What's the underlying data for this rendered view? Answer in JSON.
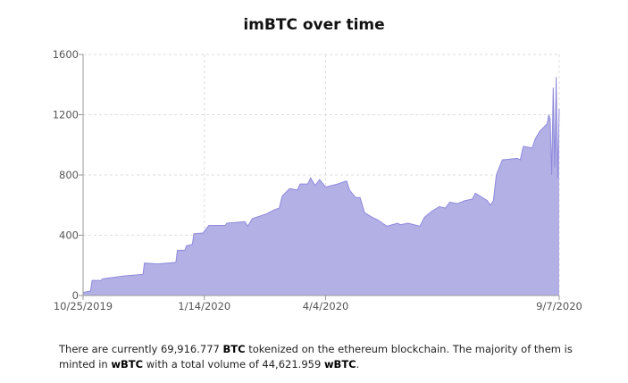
{
  "chart_data": {
    "type": "area",
    "title": "imBTC over time",
    "xlabel": "",
    "ylabel": "",
    "x_range": [
      "2019-10-25",
      "2020-09-07"
    ],
    "ylim": [
      0,
      1600
    ],
    "x_ticks": [
      "10/25/2019",
      "1/14/2020",
      "4/4/2020",
      "9/7/2020"
    ],
    "x_tick_dates": [
      "2019-10-25",
      "2020-01-14",
      "2020-04-04",
      "2020-09-07"
    ],
    "y_ticks": [
      0,
      400,
      800,
      1200,
      1600
    ],
    "grid": true,
    "colors": {
      "fill": "#b3b0e6",
      "line": "#8f8adb"
    },
    "points": [
      [
        "2019-10-25",
        20
      ],
      [
        "2019-10-30",
        30
      ],
      [
        "2019-10-31",
        100
      ],
      [
        "2019-11-06",
        100
      ],
      [
        "2019-11-07",
        110
      ],
      [
        "2019-11-14",
        120
      ],
      [
        "2019-11-21",
        130
      ],
      [
        "2019-12-04",
        140
      ],
      [
        "2019-12-05",
        215
      ],
      [
        "2019-12-14",
        210
      ],
      [
        "2019-12-26",
        220
      ],
      [
        "2019-12-27",
        300
      ],
      [
        "2020-01-01",
        300
      ],
      [
        "2020-01-02",
        330
      ],
      [
        "2020-01-06",
        340
      ],
      [
        "2020-01-07",
        410
      ],
      [
        "2020-01-13",
        415
      ],
      [
        "2020-01-15",
        440
      ],
      [
        "2020-01-17",
        465
      ],
      [
        "2020-01-28",
        465
      ],
      [
        "2020-01-29",
        480
      ],
      [
        "2020-02-10",
        490
      ],
      [
        "2020-02-12",
        460
      ],
      [
        "2020-02-15",
        510
      ],
      [
        "2020-02-24",
        540
      ],
      [
        "2020-03-01",
        570
      ],
      [
        "2020-03-04",
        580
      ],
      [
        "2020-03-06",
        660
      ],
      [
        "2020-03-11",
        710
      ],
      [
        "2020-03-16",
        700
      ],
      [
        "2020-03-18",
        740
      ],
      [
        "2020-03-23",
        740
      ],
      [
        "2020-03-25",
        780
      ],
      [
        "2020-03-28",
        730
      ],
      [
        "2020-03-31",
        770
      ],
      [
        "2020-04-04",
        720
      ],
      [
        "2020-04-12",
        740
      ],
      [
        "2020-04-18",
        760
      ],
      [
        "2020-04-20",
        700
      ],
      [
        "2020-04-24",
        650
      ],
      [
        "2020-04-27",
        650
      ],
      [
        "2020-04-30",
        550
      ],
      [
        "2020-05-05",
        520
      ],
      [
        "2020-05-09",
        500
      ],
      [
        "2020-05-12",
        480
      ],
      [
        "2020-05-15",
        460
      ],
      [
        "2020-05-22",
        480
      ],
      [
        "2020-05-24",
        470
      ],
      [
        "2020-05-29",
        480
      ],
      [
        "2020-06-06",
        460
      ],
      [
        "2020-06-09",
        520
      ],
      [
        "2020-06-14",
        560
      ],
      [
        "2020-06-19",
        590
      ],
      [
        "2020-06-23",
        580
      ],
      [
        "2020-06-26",
        620
      ],
      [
        "2020-07-01",
        610
      ],
      [
        "2020-07-06",
        630
      ],
      [
        "2020-07-11",
        640
      ],
      [
        "2020-07-13",
        680
      ],
      [
        "2020-07-21",
        630
      ],
      [
        "2020-07-23",
        600
      ],
      [
        "2020-07-25",
        630
      ],
      [
        "2020-07-27",
        800
      ],
      [
        "2020-07-31",
        900
      ],
      [
        "2020-08-10",
        910
      ],
      [
        "2020-08-12",
        900
      ],
      [
        "2020-08-14",
        990
      ],
      [
        "2020-08-20",
        980
      ],
      [
        "2020-08-22",
        1040
      ],
      [
        "2020-08-25",
        1090
      ],
      [
        "2020-08-30",
        1140
      ],
      [
        "2020-08-31",
        1200
      ],
      [
        "2020-09-01",
        1170
      ],
      [
        "2020-09-02",
        800
      ],
      [
        "2020-09-03",
        1380
      ],
      [
        "2020-09-04",
        850
      ],
      [
        "2020-09-05",
        1450
      ],
      [
        "2020-09-06",
        780
      ],
      [
        "2020-09-07",
        1240
      ]
    ]
  },
  "description": {
    "p1": "There are currently 69,916.777 ",
    "b1": "BTC",
    "p2": " tokenized on the ethereum blockchain. The majority of them is minted in ",
    "b2": "wBTC",
    "p3": " with a total volume of 44,621.959 ",
    "b3": "wBTC",
    "p4": "."
  }
}
